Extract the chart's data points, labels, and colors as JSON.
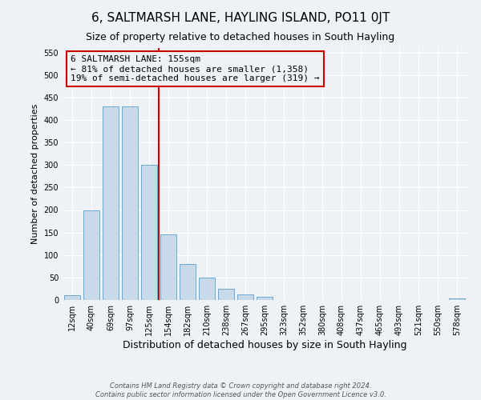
{
  "title": "6, SALTMARSH LANE, HAYLING ISLAND, PO11 0JT",
  "subtitle": "Size of property relative to detached houses in South Hayling",
  "xlabel": "Distribution of detached houses by size in South Hayling",
  "ylabel": "Number of detached properties",
  "bar_color": "#c8d9ea",
  "bar_edge_color": "#6aaad4",
  "categories": [
    "12sqm",
    "40sqm",
    "69sqm",
    "97sqm",
    "125sqm",
    "154sqm",
    "182sqm",
    "210sqm",
    "238sqm",
    "267sqm",
    "295sqm",
    "323sqm",
    "352sqm",
    "380sqm",
    "408sqm",
    "437sqm",
    "465sqm",
    "493sqm",
    "521sqm",
    "550sqm",
    "578sqm"
  ],
  "values": [
    10,
    200,
    430,
    430,
    300,
    145,
    80,
    50,
    25,
    13,
    8,
    0,
    0,
    0,
    0,
    0,
    0,
    0,
    0,
    0,
    3
  ],
  "ylim": [
    0,
    560
  ],
  "yticks": [
    0,
    50,
    100,
    150,
    200,
    250,
    300,
    350,
    400,
    450,
    500,
    550
  ],
  "vline_color": "#cc0000",
  "annotation_text_line1": "6 SALTMARSH LANE: 155sqm",
  "annotation_text_line2": "← 81% of detached houses are smaller (1,358)",
  "annotation_text_line3": "19% of semi-detached houses are larger (319) →",
  "annotation_box_edge_color": "#cc0000",
  "footer_line1": "Contains HM Land Registry data © Crown copyright and database right 2024.",
  "footer_line2": "Contains public sector information licensed under the Open Government Licence v3.0.",
  "background_color": "#eef2f7",
  "grid_color": "#ffffff",
  "title_fontsize": 11,
  "subtitle_fontsize": 9,
  "ylabel_fontsize": 8,
  "xlabel_fontsize": 9,
  "tick_fontsize": 7,
  "annotation_fontsize": 8,
  "footer_fontsize": 6
}
